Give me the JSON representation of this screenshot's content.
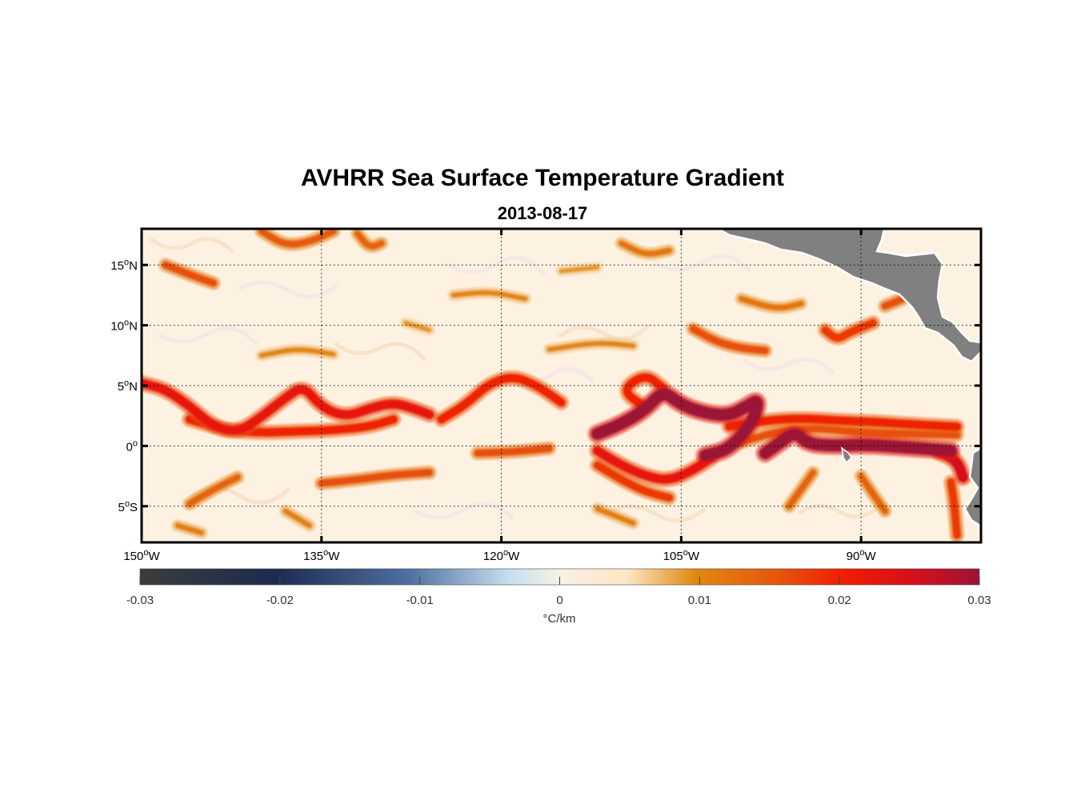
{
  "chart_data": {
    "type": "heatmap",
    "title": "AVHRR Sea Surface Temperature Gradient",
    "subtitle": "2013-08-17",
    "map": {
      "lon_range_deg": [
        -150,
        -80
      ],
      "lat_range_deg": [
        -8,
        18
      ],
      "grid": true,
      "land_color": "#808080",
      "x_ticks": [
        {
          "value": -150,
          "deg": "150",
          "hemi": "W"
        },
        {
          "value": -135,
          "deg": "135",
          "hemi": "W"
        },
        {
          "value": -120,
          "deg": "120",
          "hemi": "W"
        },
        {
          "value": -105,
          "deg": "105",
          "hemi": "W"
        },
        {
          "value": -90,
          "deg": "90",
          "hemi": "W"
        }
      ],
      "y_ticks": [
        {
          "value": 15,
          "deg": "15",
          "hemi": "N"
        },
        {
          "value": 10,
          "deg": "10",
          "hemi": "N"
        },
        {
          "value": 5,
          "deg": "5",
          "hemi": "N"
        },
        {
          "value": 0,
          "deg": "0",
          "hemi": ""
        },
        {
          "value": -5,
          "deg": "5",
          "hemi": "S"
        }
      ]
    },
    "fronts": [
      {
        "level": 0.03,
        "points": [
          [
            -112,
            1.0
          ],
          [
            -110,
            1.8
          ],
          [
            -108,
            3.0
          ],
          [
            -106.5,
            4.6
          ],
          [
            -105,
            3.4
          ],
          [
            -103,
            2.7
          ],
          [
            -101,
            2.5
          ],
          [
            -99.5,
            3.3
          ],
          [
            -98.5,
            3.9
          ],
          [
            -99,
            2.0
          ],
          [
            -101,
            -0.3
          ],
          [
            -103,
            -0.8
          ]
        ]
      },
      {
        "level": 0.03,
        "points": [
          [
            -98,
            -0.6
          ],
          [
            -97,
            0.1
          ],
          [
            -95.5,
            1.2
          ],
          [
            -94.5,
            0.2
          ],
          [
            -92.5,
            0.0
          ],
          [
            -90,
            0.1
          ],
          [
            -88,
            0.0
          ],
          [
            -85,
            -0.2
          ],
          [
            -82.5,
            -0.4
          ]
        ]
      },
      {
        "level": 0.025,
        "points": [
          [
            -83.5,
            -0.5
          ],
          [
            -82,
            -1.2
          ],
          [
            -81.5,
            -2.6
          ]
        ]
      },
      {
        "level": 0.022,
        "points": [
          [
            -150,
            5.2
          ],
          [
            -148,
            4.7
          ],
          [
            -146,
            3.3
          ],
          [
            -144,
            1.6
          ],
          [
            -142,
            1.1
          ],
          [
            -140,
            2.4
          ],
          [
            -138,
            4.0
          ],
          [
            -136.5,
            5.0
          ],
          [
            -135,
            3.2
          ],
          [
            -133,
            2.4
          ],
          [
            -131,
            3.1
          ],
          [
            -129,
            3.6
          ],
          [
            -127,
            3.0
          ],
          [
            -126,
            2.6
          ]
        ]
      },
      {
        "level": 0.02,
        "points": [
          [
            -146,
            2.2
          ],
          [
            -143,
            1.3
          ],
          [
            -140,
            1.1
          ],
          [
            -137,
            1.2
          ],
          [
            -134,
            1.3
          ],
          [
            -131,
            1.6
          ],
          [
            -129,
            2.2
          ]
        ]
      },
      {
        "level": 0.02,
        "points": [
          [
            -125,
            2.2
          ],
          [
            -123,
            3.4
          ],
          [
            -121,
            5.2
          ],
          [
            -119,
            5.8
          ],
          [
            -117,
            5.0
          ],
          [
            -115,
            3.6
          ]
        ]
      },
      {
        "level": 0.02,
        "points": [
          [
            -108,
            3.2
          ],
          [
            -110,
            4.6
          ],
          [
            -108,
            6.0
          ],
          [
            -106.5,
            4.8
          ]
        ]
      },
      {
        "level": 0.022,
        "points": [
          [
            -112,
            -0.4
          ],
          [
            -110,
            -1.6
          ],
          [
            -108,
            -2.5
          ],
          [
            -106,
            -2.9
          ],
          [
            -104,
            -2.0
          ],
          [
            -102.5,
            -1.0
          ]
        ]
      },
      {
        "level": 0.018,
        "points": [
          [
            -112,
            -1.6
          ],
          [
            -110,
            -2.8
          ],
          [
            -108,
            -3.8
          ],
          [
            -106,
            -4.3
          ]
        ]
      },
      {
        "level": 0.02,
        "points": [
          [
            -101,
            1.6
          ],
          [
            -98,
            2.1
          ],
          [
            -95,
            2.3
          ],
          [
            -92,
            2.1
          ],
          [
            -89,
            2.0
          ],
          [
            -86,
            1.8
          ],
          [
            -82,
            1.6
          ]
        ]
      },
      {
        "level": 0.016,
        "points": [
          [
            -100,
            0.3
          ],
          [
            -97,
            1.2
          ],
          [
            -94,
            1.5
          ],
          [
            -90,
            1.1
          ],
          [
            -86,
            1.0
          ],
          [
            -82,
            0.9
          ]
        ]
      },
      {
        "level": 0.018,
        "points": [
          [
            -93,
            9.6
          ],
          [
            -92,
            8.8
          ],
          [
            -91,
            9.4
          ],
          [
            -89,
            10.2
          ]
        ]
      },
      {
        "level": 0.016,
        "points": [
          [
            -104,
            9.7
          ],
          [
            -102,
            8.6
          ],
          [
            -100,
            8.1
          ],
          [
            -98,
            7.9
          ]
        ]
      },
      {
        "level": 0.016,
        "points": [
          [
            -88,
            11.6
          ],
          [
            -86.5,
            12.2
          ]
        ]
      },
      {
        "level": 0.016,
        "points": [
          [
            -148,
            15.0
          ],
          [
            -146,
            14.2
          ],
          [
            -144,
            13.5
          ]
        ]
      },
      {
        "level": 0.015,
        "points": [
          [
            -140,
            17.8
          ],
          [
            -138,
            16.6
          ],
          [
            -136,
            16.9
          ],
          [
            -134,
            17.8
          ]
        ]
      },
      {
        "level": 0.014,
        "points": [
          [
            -132,
            17.6
          ],
          [
            -131,
            16.4
          ],
          [
            -130,
            16.8
          ]
        ]
      },
      {
        "level": 0.016,
        "points": [
          [
            -122,
            -0.6
          ],
          [
            -119,
            -0.5
          ],
          [
            -116,
            -0.2
          ]
        ]
      },
      {
        "level": 0.016,
        "points": [
          [
            -126,
            -2.2
          ],
          [
            -129,
            -2.4
          ],
          [
            -132,
            -2.8
          ],
          [
            -135,
            -3.1
          ]
        ]
      },
      {
        "level": 0.014,
        "points": [
          [
            -142,
            -2.6
          ],
          [
            -144,
            -3.6
          ],
          [
            -146,
            -4.8
          ]
        ]
      },
      {
        "level": 0.014,
        "points": [
          [
            -94,
            -2.2
          ],
          [
            -95,
            -3.6
          ],
          [
            -96,
            -5.0
          ]
        ]
      },
      {
        "level": 0.014,
        "points": [
          [
            -90,
            -2.5
          ],
          [
            -89,
            -4.0
          ],
          [
            -88,
            -5.4
          ]
        ]
      },
      {
        "level": 0.018,
        "points": [
          [
            -82.5,
            -3.0
          ],
          [
            -82.2,
            -5.0
          ],
          [
            -82,
            -7.4
          ]
        ]
      },
      {
        "level": 0.012,
        "points": [
          [
            -110,
            16.8
          ],
          [
            -108,
            15.8
          ],
          [
            -106,
            16.2
          ]
        ]
      },
      {
        "level": 0.012,
        "points": [
          [
            -100,
            12.2
          ],
          [
            -97,
            11.3
          ],
          [
            -95,
            11.8
          ]
        ]
      },
      {
        "level": 0.011,
        "points": [
          [
            -147,
            -6.6
          ],
          [
            -145,
            -7.2
          ]
        ]
      },
      {
        "level": 0.011,
        "points": [
          [
            -138,
            -5.4
          ],
          [
            -136,
            -6.6
          ]
        ]
      },
      {
        "level": 0.011,
        "points": [
          [
            -112,
            -5.2
          ],
          [
            -109,
            -6.4
          ]
        ]
      },
      {
        "level": 0.01,
        "points": [
          [
            -124,
            12.5
          ],
          [
            -121,
            12.8
          ],
          [
            -118,
            12.2
          ]
        ]
      },
      {
        "level": 0.01,
        "points": [
          [
            -140,
            7.5
          ],
          [
            -137,
            8.1
          ],
          [
            -134,
            7.6
          ]
        ]
      },
      {
        "level": 0.01,
        "points": [
          [
            -116,
            8.0
          ],
          [
            -112,
            8.6
          ],
          [
            -109,
            8.3
          ]
        ]
      },
      {
        "level": 0.009,
        "points": [
          [
            -128,
            10.2
          ],
          [
            -126,
            9.6
          ]
        ]
      },
      {
        "level": 0.009,
        "points": [
          [
            -115,
            14.5
          ],
          [
            -112,
            14.8
          ]
        ]
      }
    ],
    "colorbar": {
      "ticks": [
        "-0.03",
        "-0.02",
        "-0.01",
        "0",
        "0.01",
        "0.02",
        "0.03"
      ],
      "label": "°C/km",
      "range": [
        -0.03,
        0.03
      ],
      "colors": [
        {
          "pos": 0.0,
          "color": "#3c3c3c"
        },
        {
          "pos": 0.16,
          "color": "#1c2b4f"
        },
        {
          "pos": 0.32,
          "color": "#4f6f9f"
        },
        {
          "pos": 0.44,
          "color": "#c6dff0"
        },
        {
          "pos": 0.5,
          "color": "#f7f2e4"
        },
        {
          "pos": 0.58,
          "color": "#fde6c4"
        },
        {
          "pos": 0.66,
          "color": "#e08a13"
        },
        {
          "pos": 0.76,
          "color": "#e6550d"
        },
        {
          "pos": 0.84,
          "color": "#f01d00"
        },
        {
          "pos": 0.92,
          "color": "#d6101e"
        },
        {
          "pos": 1.0,
          "color": "#9b1535"
        }
      ]
    }
  }
}
